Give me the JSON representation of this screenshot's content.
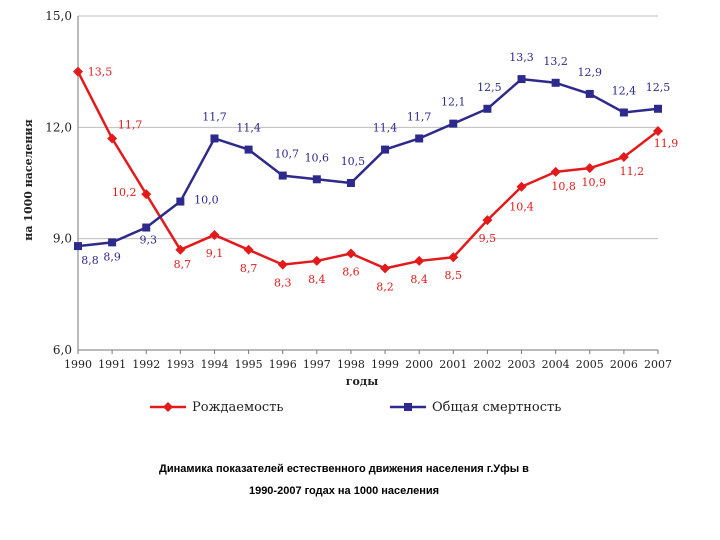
{
  "chart_data": {
    "type": "line",
    "ylabel": "на 1000 населения",
    "xlabel": "годы",
    "ylim": [
      6.0,
      15.0
    ],
    "yticks": [
      6.0,
      9.0,
      12.0,
      15.0
    ],
    "ytick_labels": [
      "6,0",
      "9,0",
      "12,0",
      "15,0"
    ],
    "categories": [
      "1990",
      "1991",
      "1992",
      "1993",
      "1994",
      "1995",
      "1996",
      "1997",
      "1998",
      "1999",
      "2000",
      "2001",
      "2002",
      "2003",
      "2004",
      "2005",
      "2006",
      "2007"
    ],
    "series": [
      {
        "name": "Рождаемость",
        "color": "#e31a1c",
        "marker": "diamond",
        "values": [
          13.5,
          11.7,
          10.2,
          8.7,
          9.1,
          8.7,
          8.3,
          8.4,
          8.6,
          8.2,
          8.4,
          8.5,
          9.5,
          10.4,
          10.8,
          10.9,
          11.2,
          11.9
        ],
        "labels": [
          "13,5",
          "11,7",
          "10,2",
          "8,7",
          "9,1",
          "8,7",
          "8,3",
          "8,4",
          "8,6",
          "8,2",
          "8,4",
          "8,5",
          "9,5",
          "10,4",
          "10,8",
          "10,9",
          "11,2",
          "11,9"
        ]
      },
      {
        "name": "Общая смертность",
        "color": "#2e2a8c",
        "marker": "square",
        "values": [
          8.8,
          8.9,
          9.3,
          10.0,
          11.7,
          11.4,
          10.7,
          10.6,
          10.5,
          11.4,
          11.7,
          12.1,
          12.5,
          13.3,
          13.2,
          12.9,
          12.4,
          12.5
        ],
        "labels": [
          "8,8",
          "8,9",
          "9,3",
          "10,0",
          "11,7",
          "11,4",
          "10,7",
          "10,6",
          "10,5",
          "11,4",
          "11,7",
          "12,1",
          "12,5",
          "13,3",
          "13,2",
          "12,9",
          "12,4",
          "12,5"
        ]
      }
    ],
    "legend_position": "bottom"
  },
  "caption": {
    "line1": "Динамика показателей естественного движения населения г.Уфы в",
    "line2": "1990-2007 годах на 1000 населения"
  }
}
